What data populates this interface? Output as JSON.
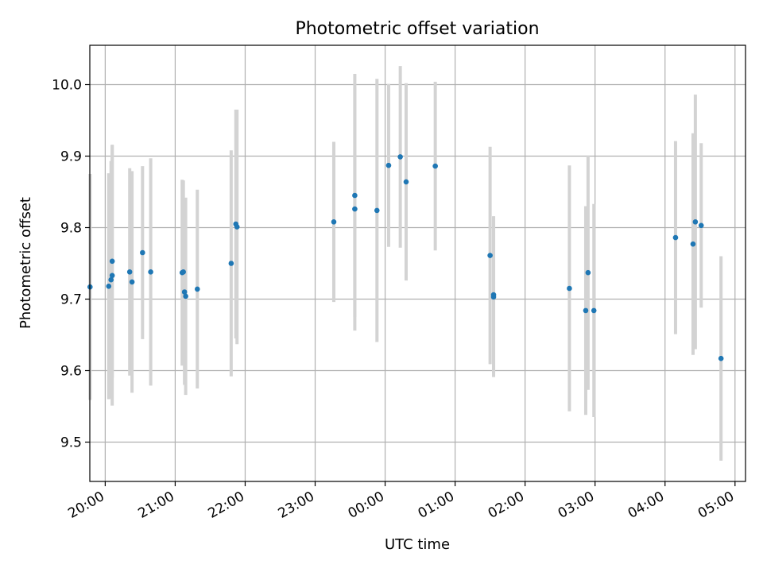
{
  "chart_data": {
    "type": "scatter",
    "title": "Photometric offset variation",
    "xlabel": "UTC time",
    "ylabel": "Photometric offset",
    "ylim": [
      9.445,
      10.055
    ],
    "xlim_hours_from_midnight": [
      -4.22,
      5.15
    ],
    "grid": true,
    "x_ticks": [
      "20:00",
      "21:00",
      "22:00",
      "23:00",
      "00:00",
      "01:00",
      "02:00",
      "03:00",
      "04:00",
      "05:00"
    ],
    "y_ticks": [
      "9.5",
      "9.6",
      "9.7",
      "9.8",
      "9.9",
      "10.0"
    ],
    "points": [
      {
        "x": "19:47",
        "y": 9.717,
        "err": 0.158
      },
      {
        "x": "20:03",
        "y": 9.718,
        "err": 0.158
      },
      {
        "x": "20:05",
        "y": 9.727,
        "err": 0.166
      },
      {
        "x": "20:06",
        "y": 9.733,
        "err": 0.182
      },
      {
        "x": "20:06",
        "y": 9.753,
        "err": 0.163
      },
      {
        "x": "20:21",
        "y": 9.738,
        "err": 0.145
      },
      {
        "x": "20:23",
        "y": 9.724,
        "err": 0.155
      },
      {
        "x": "20:32",
        "y": 9.765,
        "err": 0.121
      },
      {
        "x": "20:39",
        "y": 9.738,
        "err": 0.159
      },
      {
        "x": "21:06",
        "y": 9.737,
        "err": 0.13
      },
      {
        "x": "21:07",
        "y": 9.738,
        "err": 0.128
      },
      {
        "x": "21:08",
        "y": 9.71,
        "err": 0.13
      },
      {
        "x": "21:09",
        "y": 9.704,
        "err": 0.138
      },
      {
        "x": "21:19",
        "y": 9.714,
        "err": 0.139
      },
      {
        "x": "21:48",
        "y": 9.75,
        "err": 0.158
      },
      {
        "x": "21:52",
        "y": 9.805,
        "err": 0.16
      },
      {
        "x": "21:53",
        "y": 9.801,
        "err": 0.164
      },
      {
        "x": "23:16",
        "y": 9.808,
        "err": 0.112
      },
      {
        "x": "23:34",
        "y": 9.845,
        "err": 0.17
      },
      {
        "x": "23:34",
        "y": 9.826,
        "err": 0.17
      },
      {
        "x": "23:53",
        "y": 9.824,
        "err": 0.184
      },
      {
        "x": "00:03",
        "y": 9.887,
        "err": 0.114
      },
      {
        "x": "00:13",
        "y": 9.899,
        "err": 0.127
      },
      {
        "x": "00:18",
        "y": 9.864,
        "err": 0.138
      },
      {
        "x": "00:43",
        "y": 9.886,
        "err": 0.118
      },
      {
        "x": "01:30",
        "y": 9.761,
        "err": 0.152
      },
      {
        "x": "01:33",
        "y": 9.706,
        "err": 0.11
      },
      {
        "x": "01:33",
        "y": 9.703,
        "err": 0.112
      },
      {
        "x": "02:38",
        "y": 9.715,
        "err": 0.172
      },
      {
        "x": "02:52",
        "y": 9.684,
        "err": 0.146
      },
      {
        "x": "02:54",
        "y": 9.737,
        "err": 0.164
      },
      {
        "x": "02:59",
        "y": 9.684,
        "err": 0.149
      },
      {
        "x": "04:09",
        "y": 9.786,
        "err": 0.135
      },
      {
        "x": "04:24",
        "y": 9.777,
        "err": 0.155
      },
      {
        "x": "04:26",
        "y": 9.808,
        "err": 0.178
      },
      {
        "x": "04:31",
        "y": 9.803,
        "err": 0.115
      },
      {
        "x": "04:48",
        "y": 9.617,
        "err": 0.143
      }
    ],
    "colors": {
      "point": "#1f77b4",
      "errorbar": "#d3d3d3",
      "grid": "#b0b0b0",
      "axis": "#000000"
    }
  }
}
